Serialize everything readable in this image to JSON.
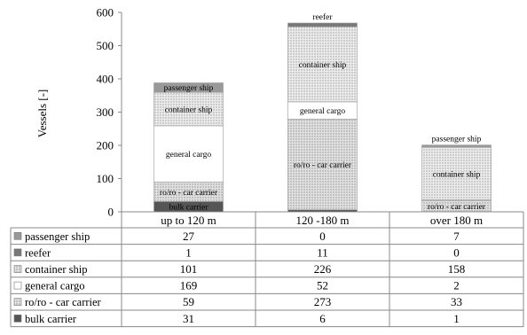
{
  "chart_data": {
    "type": "bar",
    "stacked": true,
    "categories": [
      "up to 120 m",
      "120 -180 m",
      "over 180 m"
    ],
    "ylabel": "Vessels [-]",
    "ylim": [
      0,
      600
    ],
    "yticks": [
      0,
      100,
      200,
      300,
      400,
      500,
      600
    ],
    "grid": false,
    "legend": "data-table",
    "series": [
      {
        "name": "bulk carrier",
        "values": [
          31,
          6,
          1
        ],
        "color": "#555555",
        "fill": "solid"
      },
      {
        "name": "ro/ro - car carrier",
        "values": [
          59,
          273,
          33
        ],
        "color": "#d9d9d9",
        "fill": "dots"
      },
      {
        "name": "general cargo",
        "values": [
          169,
          52,
          2
        ],
        "color": "#ffffff",
        "fill": "solid"
      },
      {
        "name": "container ship",
        "values": [
          101,
          226,
          158
        ],
        "color": "#cfcfcf",
        "fill": "dots"
      },
      {
        "name": "reefer",
        "values": [
          1,
          11,
          0
        ],
        "color": "#777777",
        "fill": "solid"
      },
      {
        "name": "passenger ship",
        "values": [
          27,
          0,
          7
        ],
        "color": "#999999",
        "fill": "solid"
      }
    ],
    "in_bar_labels": [
      {
        "series": "bulk carrier",
        "category": 0,
        "text": "bulk carrier"
      },
      {
        "series": "ro/ro - car carrier",
        "category": 0,
        "text": "ro/ro - car carrier"
      },
      {
        "series": "general cargo",
        "category": 0,
        "text": "general cargo"
      },
      {
        "series": "container ship",
        "category": 0,
        "text": "container ship"
      },
      {
        "series": "passenger ship",
        "category": 0,
        "text": "passenger ship"
      },
      {
        "series": "ro/ro - car carrier",
        "category": 1,
        "text": "ro/ro - car carrier"
      },
      {
        "series": "general cargo",
        "category": 1,
        "text": "general cargo"
      },
      {
        "series": "container ship",
        "category": 1,
        "text": "container ship"
      },
      {
        "series": "reefer",
        "category": 1,
        "text": "reefer",
        "above": true
      },
      {
        "series": "ro/ro - car carrier",
        "category": 2,
        "text": "ro/ro - car carrier"
      },
      {
        "series": "container ship",
        "category": 2,
        "text": "container ship"
      },
      {
        "series": "passenger ship",
        "category": 2,
        "text": "passenger ship",
        "above": true
      }
    ],
    "table_row_order": [
      "passenger ship",
      "reefer",
      "container ship",
      "general cargo",
      "ro/ro - car carrier",
      "bulk carrier"
    ]
  }
}
